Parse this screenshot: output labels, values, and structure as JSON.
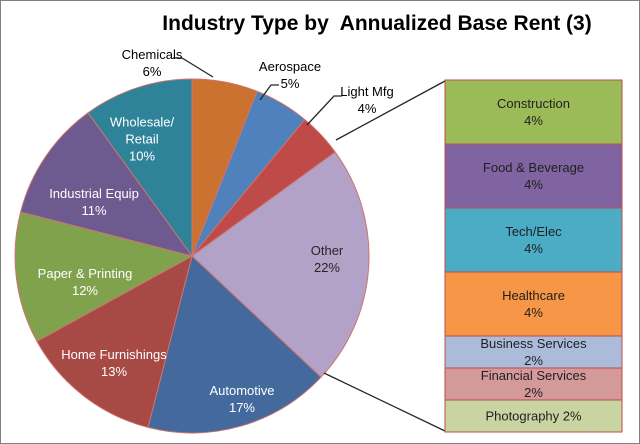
{
  "title": "Industry Type by  Annualized Base Rent (3)",
  "chart_data": {
    "type": "pie",
    "variant": "pie-of-pie",
    "title": "Industry Type by  Annualized Base Rent (3)",
    "unit": "%",
    "main_pie": {
      "start_angle_deg": 0,
      "direction": "clockwise-from-top",
      "slices": [
        {
          "label": "Chemicals",
          "pct": 6,
          "pct_label": "6%",
          "color": "#CB7231",
          "text_color": "#000000",
          "placement": "outside"
        },
        {
          "label": "Aerospace",
          "pct": 5,
          "pct_label": "5%",
          "color": "#4F81BD",
          "text_color": "#000000",
          "placement": "outside"
        },
        {
          "label": "Light Mfg",
          "pct": 4,
          "pct_label": "4%",
          "color": "#BE4B48",
          "text_color": "#000000",
          "placement": "outside"
        },
        {
          "label": "Other",
          "pct": 22,
          "pct_label": "22%",
          "color": "#B3A2C7",
          "text_color": "#262626",
          "placement": "inside"
        },
        {
          "label": "Automotive",
          "pct": 17,
          "pct_label": "17%",
          "color": "#44699D",
          "text_color": "#FFFFFF",
          "placement": "inside"
        },
        {
          "label": "Home Furnishings",
          "pct": 13,
          "pct_label": "13%",
          "color": "#A74944",
          "text_color": "#FFFFFF",
          "placement": "inside"
        },
        {
          "label": "Paper & Printing",
          "pct": 12,
          "pct_label": "12%",
          "color": "#81A24D",
          "text_color": "#FFFFFF",
          "placement": "inside"
        },
        {
          "label": "Industrial Equip",
          "pct": 11,
          "pct_label": "11%",
          "color": "#6D5A8E",
          "text_color": "#FFFFFF",
          "placement": "inside"
        },
        {
          "label": "Wholesale/Retail",
          "label_lines": [
            "Wholesale/",
            "Retail"
          ],
          "pct": 10,
          "pct_label": "10%",
          "color": "#2F8399",
          "text_color": "#FFFFFF",
          "placement": "inside"
        }
      ]
    },
    "secondary_bar": {
      "represents": "Other",
      "segments": [
        {
          "label": "Construction",
          "pct": 4,
          "pct_label": "4%",
          "color": "#9BBB59"
        },
        {
          "label": "Food & Beverage",
          "pct": 4,
          "pct_label": "4%",
          "color": "#8064A2"
        },
        {
          "label": "Tech/Elec",
          "pct": 4,
          "pct_label": "4%",
          "color": "#4BACC6"
        },
        {
          "label": "Healthcare",
          "pct": 4,
          "pct_label": "4%",
          "color": "#F79646"
        },
        {
          "label": "Business Services",
          "pct": 2,
          "pct_label": "2%",
          "color": "#ABBCDA"
        },
        {
          "label": "Financial Services",
          "pct": 2,
          "pct_label": "2%",
          "color": "#D49A99"
        },
        {
          "label": "Photography",
          "pct": 2,
          "pct_label": "2%",
          "color": "#C8D5A2",
          "single_line": true
        }
      ]
    },
    "styles": {
      "pie_border": "#CC7470",
      "bar_border": "#BE4B48",
      "line_color": "#262626",
      "chart_border": "#7F7F7F",
      "bar_text_color": "#1F1F1F"
    }
  }
}
